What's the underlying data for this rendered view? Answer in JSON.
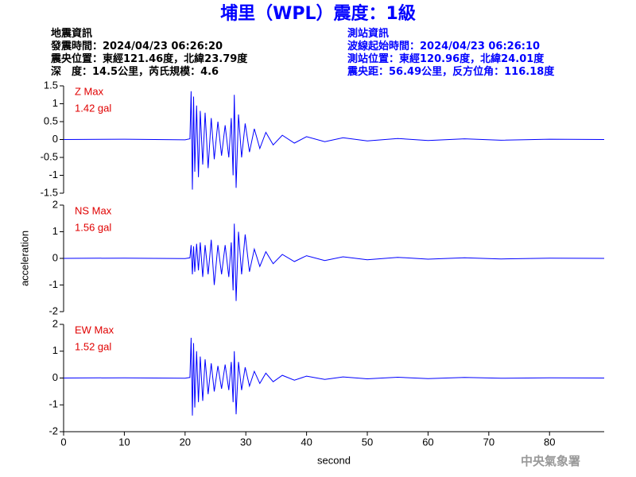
{
  "header": {
    "title": "埔里（WPL）震度：1級",
    "left": [
      "地震資訊",
      "發震時間：2024/04/23 06:26:20",
      "震央位置：東經121.46度，北緯23.79度",
      "深　度：14.5公里，芮氏規模：4.6"
    ],
    "right": [
      "測站資訊",
      "波線起始時間：2024/04/23 06:26:10",
      "測站位置：東經120.96度，北緯24.01度",
      "震央距：56.49公里，反方位角：116.18度"
    ],
    "footer": "中央氣象署"
  },
  "chart_data": [
    {
      "type": "line",
      "max_label": "Z Max",
      "max_value_label": "1.42 gal",
      "x": [
        0,
        10,
        20,
        20.8,
        21.0,
        21.2,
        21.4,
        21.6,
        21.9,
        22.2,
        22.5,
        22.9,
        23.3,
        23.8,
        24.3,
        24.8,
        25.4,
        26,
        26.6,
        27.2,
        27.6,
        27.9,
        28.1,
        28.4,
        28.8,
        29.3,
        29.9,
        30.6,
        31.4,
        32.3,
        33.3,
        34.5,
        36,
        38,
        40,
        43,
        46,
        50,
        55,
        60,
        66,
        72,
        80,
        89
      ],
      "series": [
        {
          "color": "#0000ff",
          "values": [
            0,
            0.01,
            -0.01,
            0.02,
            1.35,
            -1.4,
            1.2,
            -0.9,
            0.95,
            -1.05,
            0.8,
            -0.7,
            0.75,
            -0.8,
            0.6,
            -0.55,
            0.5,
            -0.45,
            0.4,
            -0.5,
            0.6,
            -1.0,
            1.25,
            -1.35,
            0.7,
            -0.5,
            0.45,
            -0.35,
            0.3,
            -0.25,
            0.2,
            -0.15,
            0.12,
            -0.1,
            0.08,
            -0.06,
            0.05,
            -0.04,
            0.03,
            -0.03,
            0.02,
            -0.02,
            0.01,
            0
          ]
        }
      ],
      "xlim": [
        0,
        89
      ],
      "ylim": [
        -1.5,
        1.5
      ],
      "yticks": [
        1.5,
        1,
        0.5,
        0,
        -0.5,
        -1,
        -1.5
      ]
    },
    {
      "type": "line",
      "max_label": "NS Max",
      "max_value_label": "1.56 gal",
      "y_label": "acceleration",
      "x": [
        0,
        10,
        20,
        20.8,
        21.0,
        21.2,
        21.4,
        21.6,
        21.9,
        22.2,
        22.5,
        22.9,
        23.3,
        23.8,
        24.3,
        24.8,
        25.4,
        26,
        26.6,
        27.2,
        27.6,
        27.9,
        28.1,
        28.4,
        28.8,
        29.3,
        29.9,
        30.6,
        31.4,
        32.3,
        33.3,
        34.5,
        36,
        38,
        40,
        43,
        46,
        50,
        55,
        60,
        66,
        72,
        80,
        89
      ],
      "series": [
        {
          "color": "#0000ff",
          "values": [
            0,
            0.01,
            -0.01,
            0.02,
            0.5,
            -0.6,
            0.45,
            -0.5,
            0.55,
            -0.45,
            0.6,
            -0.7,
            0.5,
            -0.6,
            0.7,
            -1.0,
            0.5,
            -0.6,
            0.5,
            -0.7,
            0.6,
            -1.2,
            1.3,
            -1.6,
            1.0,
            -0.6,
            0.9,
            -0.5,
            0.35,
            -0.3,
            0.25,
            -0.2,
            0.15,
            -0.12,
            0.1,
            -0.08,
            0.06,
            -0.05,
            0.04,
            -0.03,
            0.02,
            -0.02,
            0.01,
            0
          ]
        }
      ],
      "xlim": [
        0,
        89
      ],
      "ylim": [
        -2,
        2
      ],
      "yticks": [
        2,
        1,
        0,
        -1,
        -2
      ]
    },
    {
      "type": "line",
      "max_label": "EW Max",
      "max_value_label": "1.52 gal",
      "x_label": "second",
      "x": [
        0,
        10,
        20,
        20.8,
        21.0,
        21.2,
        21.4,
        21.6,
        21.9,
        22.2,
        22.5,
        22.9,
        23.3,
        23.8,
        24.3,
        24.8,
        25.4,
        26,
        26.6,
        27.2,
        27.6,
        27.9,
        28.1,
        28.4,
        28.8,
        29.3,
        29.9,
        30.6,
        31.4,
        32.3,
        33.3,
        34.5,
        36,
        38,
        40,
        43,
        46,
        50,
        55,
        60,
        66,
        72,
        80,
        89
      ],
      "series": [
        {
          "color": "#0000ff",
          "values": [
            0,
            0.01,
            -0.01,
            0.02,
            1.5,
            -1.4,
            1.3,
            -1.1,
            1.0,
            -0.9,
            0.8,
            -0.85,
            0.7,
            -0.6,
            0.55,
            -0.5,
            0.45,
            -0.4,
            0.5,
            -0.45,
            0.6,
            -0.9,
            1.0,
            -1.35,
            0.6,
            -0.45,
            0.4,
            -0.3,
            0.25,
            -0.2,
            0.18,
            -0.14,
            0.1,
            -0.08,
            0.07,
            -0.05,
            0.04,
            -0.03,
            0.03,
            -0.02,
            0.02,
            -0.01,
            0.01,
            0
          ]
        }
      ],
      "xlim": [
        0,
        89
      ],
      "ylim": [
        -2,
        2
      ],
      "yticks": [
        2,
        1,
        0,
        -1,
        -2
      ],
      "xticks": [
        0,
        10,
        20,
        30,
        40,
        50,
        60,
        70,
        80
      ]
    }
  ]
}
